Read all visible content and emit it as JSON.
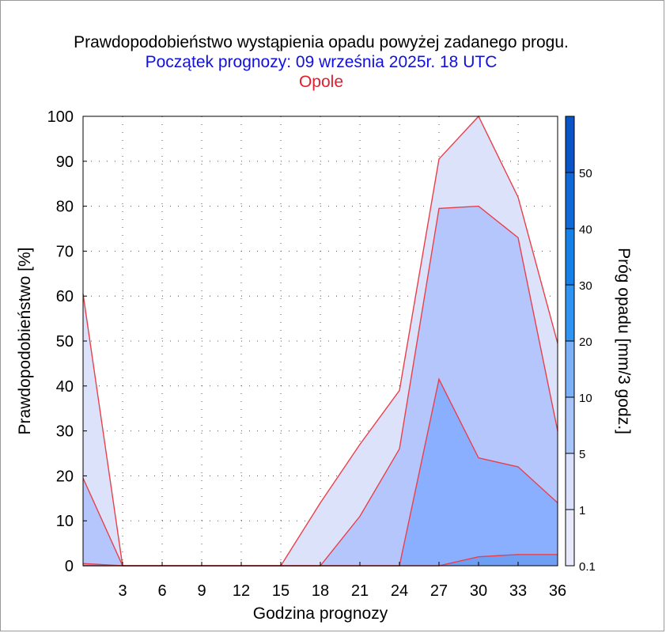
{
  "titles": {
    "line1": "Prawdopodobieństwo wystąpienia opadu powyżej zadanego progu.",
    "line2": "Początek prognozy: 09 września 2025r. 18 UTC",
    "line3": "Opole"
  },
  "colors": {
    "title_main": "#000000",
    "title_start": "#1010e0",
    "title_city": "#e0202c",
    "outline": "#e8404a",
    "band_0_1": "#dde2fb",
    "band_1": "#b4c6fb",
    "band_5": "#8aafff",
    "band_10": "#6f9ef5"
  },
  "chart_data": {
    "type": "area",
    "xlabel": "Godzina prognozy",
    "ylabel": "Prawdopodobieństwo [%]",
    "colorbar_label": "Próg opadu [mm/3 godz.]",
    "xlim": [
      0,
      36
    ],
    "ylim": [
      0,
      100
    ],
    "x_ticks": [
      "3",
      "6",
      "9",
      "12",
      "15",
      "18",
      "21",
      "24",
      "27",
      "30",
      "33",
      "36"
    ],
    "y_ticks": [
      "0",
      "10",
      "20",
      "30",
      "40",
      "50",
      "60",
      "70",
      "80",
      "90",
      "100"
    ],
    "colorbar_ticks": [
      "0.1",
      "1",
      "5",
      "10",
      "20",
      "30",
      "40",
      "50"
    ],
    "colorbar_colors": [
      "#e8eafc",
      "#d8e0fb",
      "#a9c4f8",
      "#7cb0f7",
      "#2f94f2",
      "#1580e6",
      "#0f6ad8",
      "#0a54c6",
      "#083fb0"
    ],
    "x": [
      0,
      3,
      6,
      9,
      12,
      15,
      18,
      21,
      24,
      27,
      30,
      33,
      36
    ],
    "series": [
      {
        "threshold": "0.1",
        "values": [
          60.5,
          0,
          0,
          0,
          0,
          0,
          14,
          27,
          39,
          90.5,
          100,
          82,
          49.5
        ]
      },
      {
        "threshold": "1",
        "values": [
          19.5,
          0,
          0,
          0,
          0,
          0,
          0,
          11,
          26,
          79.5,
          80,
          73,
          30
        ]
      },
      {
        "threshold": "5",
        "values": [
          0.5,
          0,
          0,
          0,
          0,
          0,
          0,
          0,
          0,
          41.5,
          24,
          22,
          14
        ]
      },
      {
        "threshold": "10",
        "values": [
          0,
          0,
          0,
          0,
          0,
          0,
          0,
          0,
          0,
          0,
          2,
          2.5,
          2.5
        ]
      }
    ],
    "grid": true
  }
}
